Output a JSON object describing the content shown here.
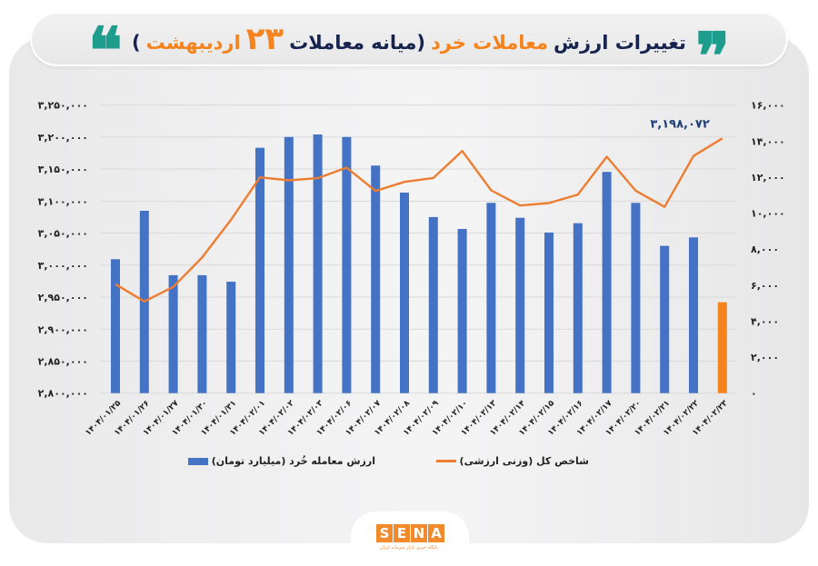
{
  "header": {
    "title_parts": [
      {
        "text": "تغییرات ارزش",
        "style": "navy"
      },
      {
        "text": "معاملات خرد",
        "style": "orange"
      },
      {
        "text": "(میانه معاملات",
        "style": "navy"
      },
      {
        "text": "۲۳",
        "style": "big"
      },
      {
        "text": "اردیبهشت",
        "style": "orange"
      },
      {
        "text": ")",
        "style": "navy"
      }
    ],
    "quote_open": "❞",
    "quote_close": "❝"
  },
  "colors": {
    "bar": "#4472c4",
    "bar_highlight": "#f5841f",
    "line": "#ed7d31",
    "navy": "#16244f",
    "teal": "#1e9c8c",
    "grid": "#d9d9d9",
    "annotation": "#1f3f7a"
  },
  "legend": {
    "line_label": "شاخص کل (وزنی ارزشی)",
    "bar_label": "ارزش معامله خُرد (میلیارد تومان)"
  },
  "logo": {
    "letters": [
      "S",
      "E",
      "N",
      "A"
    ],
    "subtitle": "پایگاه خبری بازار سرمایه ایران"
  },
  "chart_data": {
    "type": "bar+line",
    "title": "تغییرات ارزش معاملات خرد (میانه معاملات ۲۳ اردیبهشت)",
    "categories": [
      "۱۴۰۴/۰۱/۲۵",
      "۱۴۰۴/۰۱/۲۶",
      "۱۴۰۴/۰۱/۲۷",
      "۱۴۰۴/۰۱/۳۰",
      "۱۴۰۴/۰۱/۳۱",
      "۱۴۰۴/۰۲/۰۱",
      "۱۴۰۴/۰۲/۰۲",
      "۱۴۰۴/۰۲/۰۳",
      "۱۴۰۴/۰۲/۰۶",
      "۱۴۰۴/۰۲/۰۷",
      "۱۴۰۴/۰۲/۰۸",
      "۱۴۰۴/۰۲/۰۹",
      "۱۴۰۴/۰۲/۱۰",
      "۱۴۰۴/۰۲/۱۳",
      "۱۴۰۴/۰۲/۱۴",
      "۱۴۰۴/۰۲/۱۵",
      "۱۴۰۴/۰۲/۱۶",
      "۱۴۰۴/۰۲/۱۷",
      "۱۴۰۴/۰۲/۲۰",
      "۱۴۰۴/۰۲/۲۱",
      "۱۴۰۴/۰۲/۲۲",
      "۱۴۰۴/۰۲/۲۳"
    ],
    "series": [
      {
        "name": "ارزش معامله خُرد (میلیارد تومان)",
        "type": "bar",
        "axis": "right",
        "values": [
          7440,
          10130,
          6550,
          6550,
          6190,
          13630,
          14230,
          14370,
          14230,
          12640,
          11140,
          9780,
          9120,
          10570,
          9740,
          8920,
          9440,
          12290,
          10570,
          8180,
          8650,
          5050
        ],
        "highlight_last": true
      },
      {
        "name": "شاخص کل (وزنی ارزشی)",
        "type": "line",
        "axis": "left",
        "values": [
          2970200,
          2943300,
          2966000,
          3011900,
          3071000,
          3137200,
          3132500,
          3135800,
          3152400,
          3115900,
          3130000,
          3136200,
          3178300,
          3116900,
          3093200,
          3097000,
          3110200,
          3169400,
          3116300,
          3091000,
          3170500,
          3198072
        ]
      }
    ],
    "annotation": {
      "text": "۳,۱۹۸,۰۷۲",
      "index": 21,
      "series": "line"
    },
    "left_axis": {
      "range": [
        2800000,
        3250000
      ],
      "ticks": [
        "۲,۸۰۰,۰۰۰",
        "۲,۸۵۰,۰۰۰",
        "۲,۹۰۰,۰۰۰",
        "۲,۹۵۰,۰۰۰",
        "۳,۰۰۰,۰۰۰",
        "۳,۰۵۰,۰۰۰",
        "۳,۱۰۰,۰۰۰",
        "۳,۱۵۰,۰۰۰",
        "۳,۲۰۰,۰۰۰",
        "۳,۲۵۰,۰۰۰"
      ]
    },
    "right_axis": {
      "range": [
        0,
        16000
      ],
      "ticks": [
        "۰",
        "۲,۰۰۰",
        "۴,۰۰۰",
        "۶,۰۰۰",
        "۸,۰۰۰",
        "۱۰,۰۰۰",
        "۱۲,۰۰۰",
        "۱۴,۰۰۰",
        "۱۶,۰۰۰"
      ]
    },
    "xlabel": "",
    "ylabel_left": "",
    "ylabel_right": "",
    "grid": true,
    "legend_position": "bottom"
  }
}
